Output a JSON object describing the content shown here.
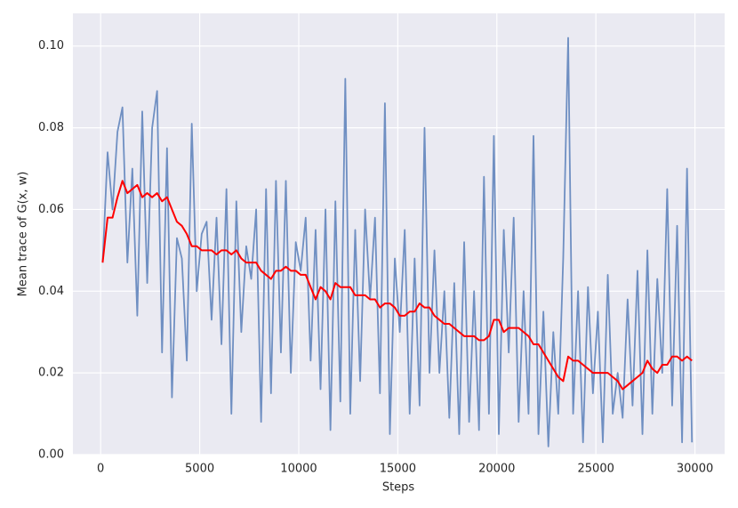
{
  "chart_data": {
    "type": "line",
    "xlabel": "Steps",
    "ylabel": "Mean trace of G(x, w)",
    "x": [
      100,
      350,
      600,
      850,
      1100,
      1350,
      1600,
      1850,
      2100,
      2350,
      2600,
      2850,
      3100,
      3350,
      3600,
      3850,
      4100,
      4350,
      4600,
      4850,
      5100,
      5350,
      5600,
      5850,
      6100,
      6350,
      6600,
      6850,
      7100,
      7350,
      7600,
      7850,
      8100,
      8350,
      8600,
      8850,
      9100,
      9350,
      9600,
      9850,
      10100,
      10350,
      10600,
      10850,
      11100,
      11350,
      11600,
      11850,
      12100,
      12350,
      12600,
      12850,
      13100,
      13350,
      13600,
      13850,
      14100,
      14350,
      14600,
      14850,
      15100,
      15350,
      15600,
      15850,
      16100,
      16350,
      16600,
      16850,
      17100,
      17350,
      17600,
      17850,
      18100,
      18350,
      18600,
      18850,
      19100,
      19350,
      19600,
      19850,
      20100,
      20350,
      20600,
      20850,
      21100,
      21350,
      21600,
      21850,
      22100,
      22350,
      22600,
      22850,
      23100,
      23350,
      23600,
      23850,
      24100,
      24350,
      24600,
      24850,
      25100,
      25350,
      25600,
      25850,
      26100,
      26350,
      26600,
      26850,
      27100,
      27350,
      27600,
      27850,
      28100,
      28350,
      28600,
      28850,
      29100,
      29350,
      29600,
      29850
    ],
    "series": [
      {
        "color": "#6f8fc2",
        "values": [
          0.047,
          0.074,
          0.06,
          0.079,
          0.085,
          0.047,
          0.07,
          0.034,
          0.084,
          0.042,
          0.08,
          0.089,
          0.025,
          0.075,
          0.014,
          0.053,
          0.048,
          0.023,
          0.081,
          0.04,
          0.054,
          0.057,
          0.033,
          0.058,
          0.027,
          0.065,
          0.01,
          0.062,
          0.03,
          0.051,
          0.043,
          0.06,
          0.008,
          0.065,
          0.015,
          0.067,
          0.025,
          0.067,
          0.02,
          0.052,
          0.045,
          0.058,
          0.023,
          0.055,
          0.016,
          0.06,
          0.006,
          0.062,
          0.013,
          0.092,
          0.01,
          0.055,
          0.018,
          0.06,
          0.038,
          0.058,
          0.015,
          0.086,
          0.005,
          0.048,
          0.03,
          0.055,
          0.01,
          0.048,
          0.012,
          0.08,
          0.02,
          0.05,
          0.02,
          0.04,
          0.009,
          0.042,
          0.005,
          0.052,
          0.008,
          0.04,
          0.006,
          0.068,
          0.01,
          0.078,
          0.005,
          0.055,
          0.025,
          0.058,
          0.008,
          0.04,
          0.01,
          0.078,
          0.005,
          0.035,
          0.002,
          0.03,
          0.01,
          0.048,
          0.102,
          0.01,
          0.04,
          0.003,
          0.041,
          0.015,
          0.035,
          0.003,
          0.044,
          0.01,
          0.02,
          0.009,
          0.038,
          0.012,
          0.045,
          0.005,
          0.05,
          0.01,
          0.043,
          0.02,
          0.065,
          0.012,
          0.056,
          0.003,
          0.07,
          0.003
        ]
      },
      {
        "color": "#ff0000",
        "values": [
          0.047,
          0.058,
          0.058,
          0.063,
          0.067,
          0.064,
          0.065,
          0.066,
          0.063,
          0.064,
          0.063,
          0.064,
          0.062,
          0.063,
          0.06,
          0.057,
          0.056,
          0.054,
          0.051,
          0.051,
          0.05,
          0.05,
          0.05,
          0.049,
          0.05,
          0.05,
          0.049,
          0.05,
          0.048,
          0.047,
          0.047,
          0.047,
          0.045,
          0.044,
          0.043,
          0.045,
          0.045,
          0.046,
          0.045,
          0.045,
          0.044,
          0.044,
          0.041,
          0.038,
          0.041,
          0.04,
          0.038,
          0.042,
          0.041,
          0.041,
          0.041,
          0.039,
          0.039,
          0.039,
          0.038,
          0.038,
          0.036,
          0.037,
          0.037,
          0.036,
          0.034,
          0.034,
          0.035,
          0.035,
          0.037,
          0.036,
          0.036,
          0.034,
          0.033,
          0.032,
          0.032,
          0.031,
          0.03,
          0.029,
          0.029,
          0.029,
          0.028,
          0.028,
          0.029,
          0.033,
          0.033,
          0.03,
          0.031,
          0.031,
          0.031,
          0.03,
          0.029,
          0.027,
          0.027,
          0.025,
          0.023,
          0.021,
          0.019,
          0.018,
          0.024,
          0.023,
          0.023,
          0.022,
          0.021,
          0.02,
          0.02,
          0.02,
          0.02,
          0.019,
          0.018,
          0.016,
          0.017,
          0.018,
          0.019,
          0.02,
          0.023,
          0.021,
          0.02,
          0.022,
          0.022,
          0.024,
          0.024,
          0.023,
          0.024,
          0.023
        ]
      }
    ],
    "xlim": [
      -1400,
      31500
    ],
    "ylim": [
      0,
      0.108
    ],
    "xticks": [
      0,
      5000,
      10000,
      15000,
      20000,
      25000,
      30000
    ],
    "yticks": [
      {
        "value": 0,
        "label": "0.00"
      },
      0.02,
      0.04,
      0.06,
      0.08,
      {
        "value": 0.1,
        "label": "0.10"
      }
    ],
    "grid": true
  }
}
